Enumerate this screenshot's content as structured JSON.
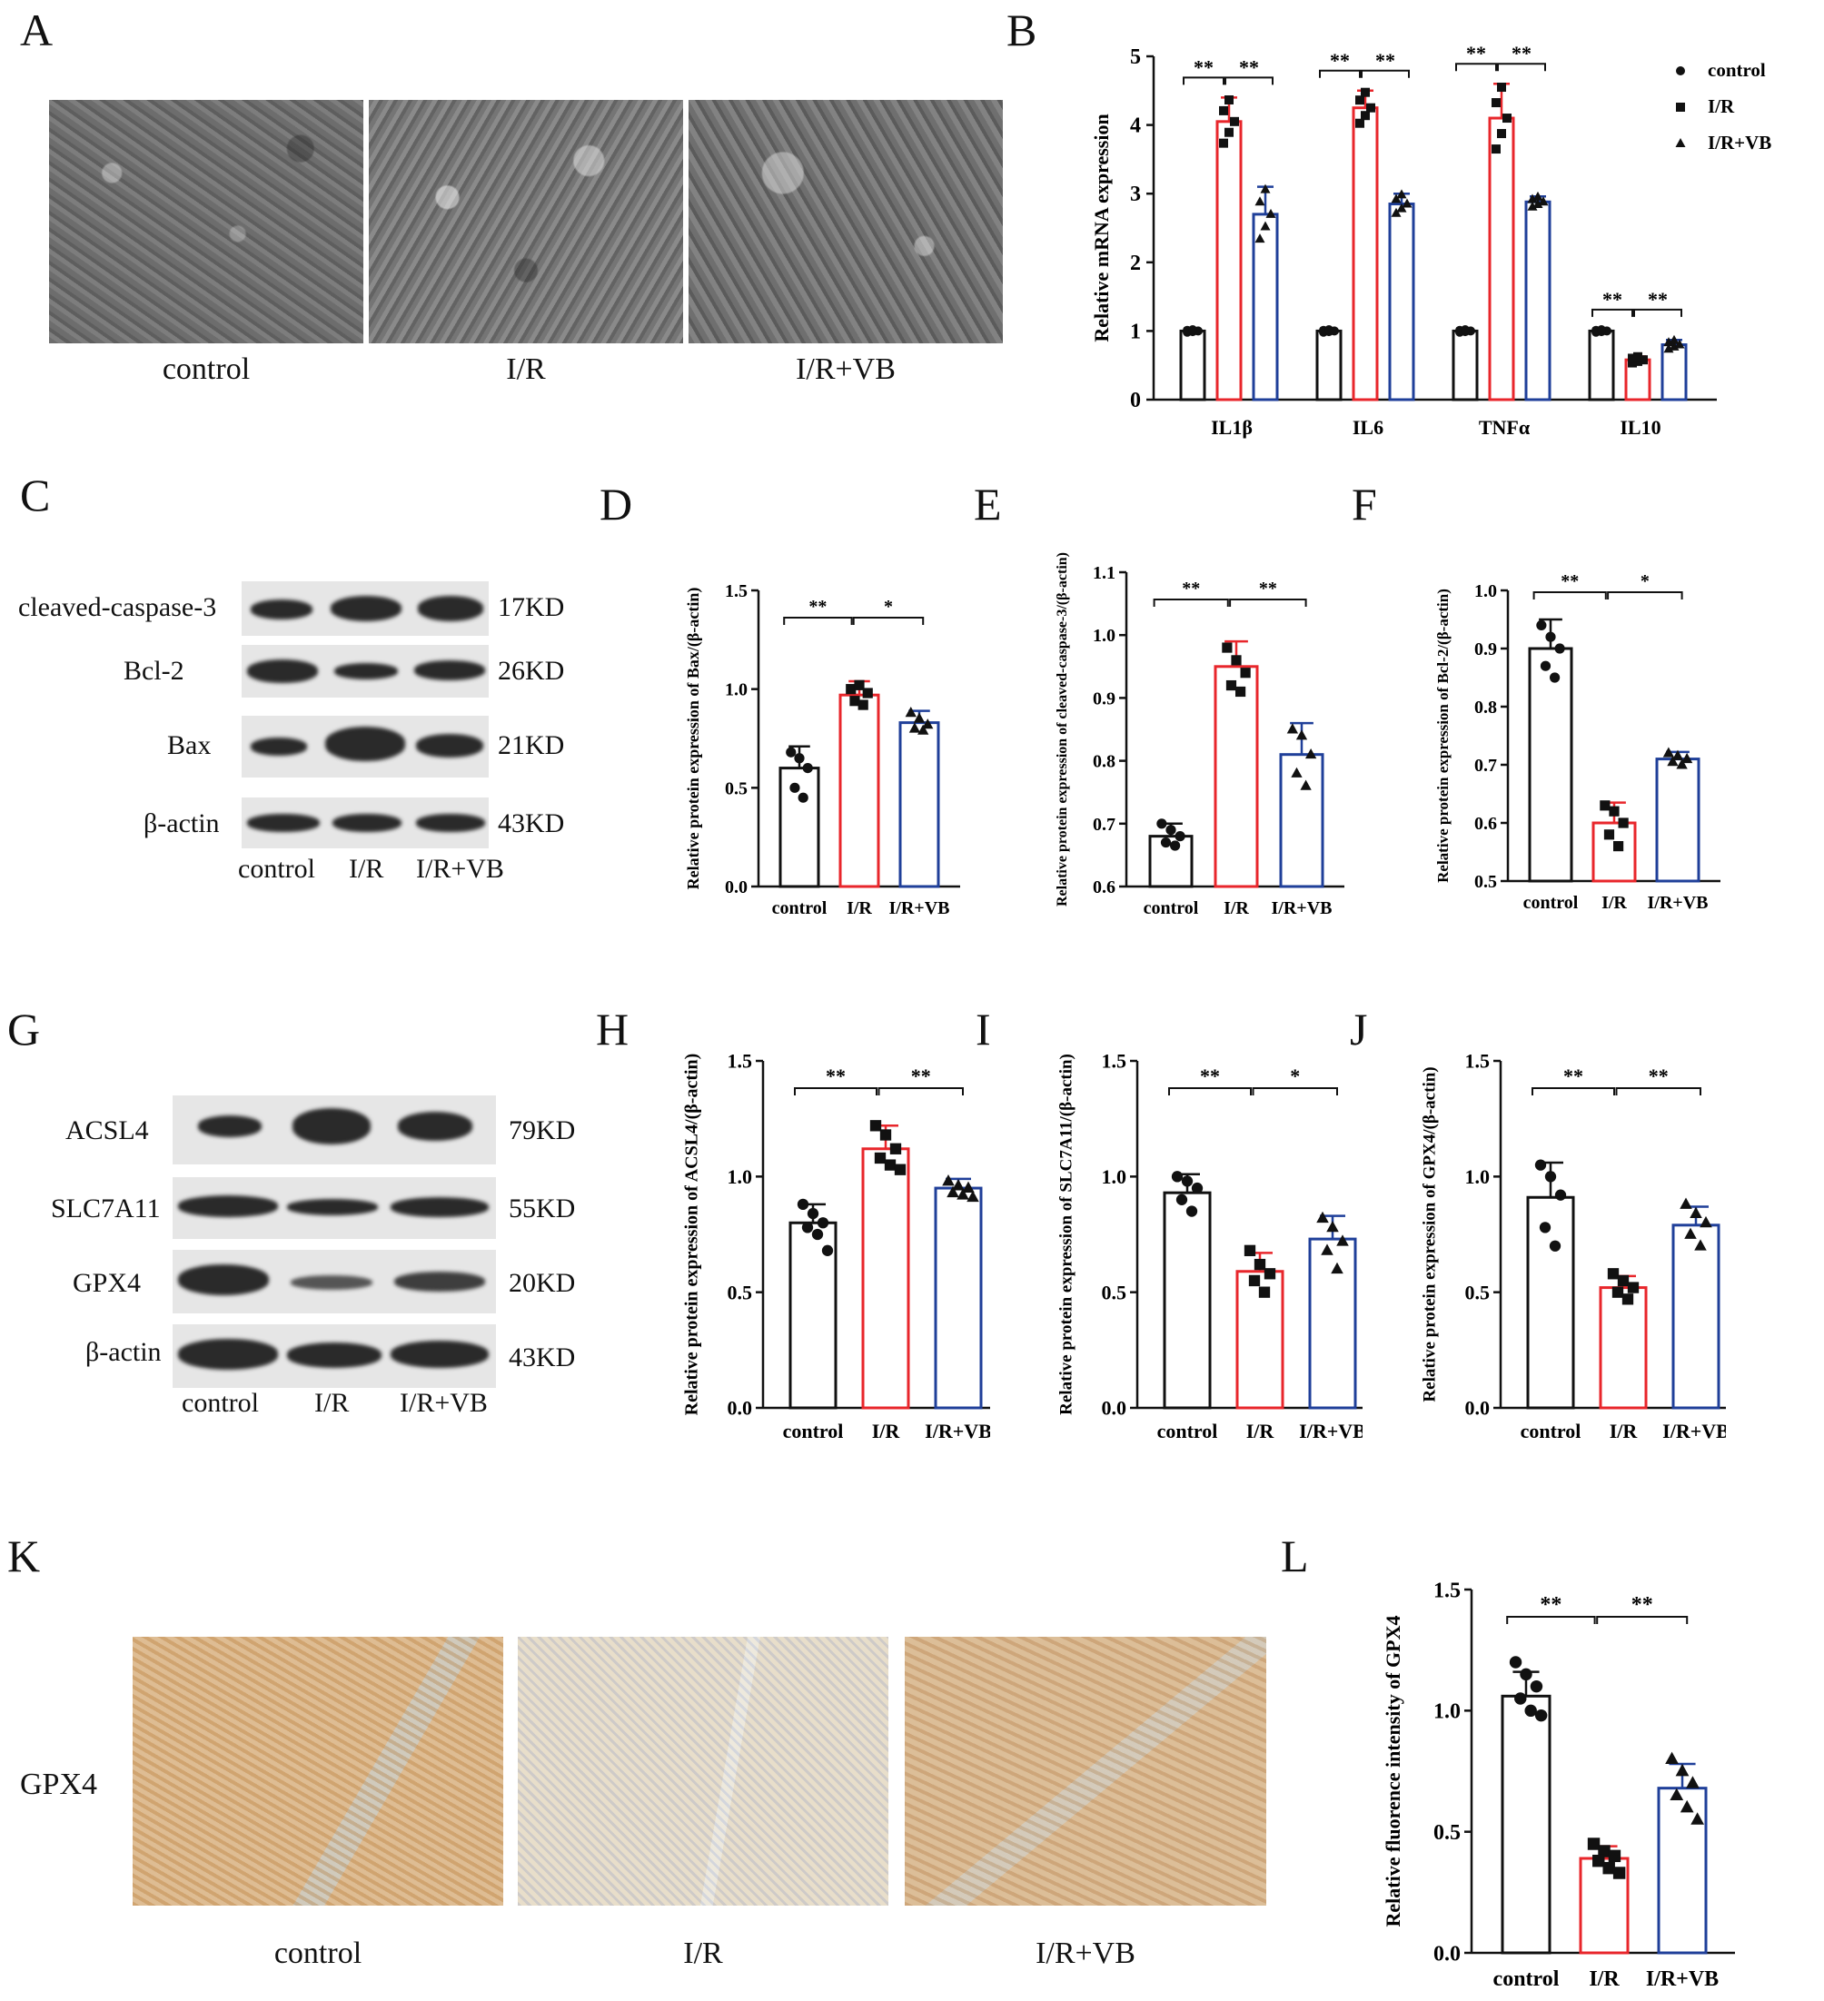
{
  "panel_letters": [
    "A",
    "B",
    "C",
    "D",
    "E",
    "F",
    "G",
    "H",
    "I",
    "J",
    "K",
    "L"
  ],
  "panel_A": {
    "captions": [
      "control",
      "I/R",
      "I/R+VB"
    ]
  },
  "panel_C": {
    "rows": [
      {
        "protein": "cleaved-caspase-3",
        "size": "17KD"
      },
      {
        "protein": "Bcl-2",
        "size": "26KD"
      },
      {
        "protein": "Bax",
        "size": "21KD"
      },
      {
        "protein": "β-actin",
        "size": "43KD"
      }
    ],
    "lanes": [
      "control",
      "I/R",
      "I/R+VB"
    ]
  },
  "panel_G": {
    "rows": [
      {
        "protein": "ACSL4",
        "size": "79KD"
      },
      {
        "protein": "SLC7A11",
        "size": "55KD"
      },
      {
        "protein": "GPX4",
        "size": "20KD"
      },
      {
        "protein": "β-actin",
        "size": "43KD"
      }
    ],
    "lanes": [
      "control",
      "I/R",
      "I/R+VB"
    ]
  },
  "panel_K": {
    "row_label": "GPX4",
    "captions": [
      "control",
      "I/R",
      "I/R+VB"
    ]
  },
  "colors": {
    "control": "#111111",
    "ir": "#e8262b",
    "irvb": "#1f3f99"
  },
  "chart_data": [
    {
      "panel": "B",
      "type": "bar",
      "categories": [
        "IL1β",
        "IL6",
        "TNFα",
        "IL10"
      ],
      "ylabel": "Relative mRNA expression",
      "ylim": [
        0,
        5
      ],
      "yticks": [
        "0",
        "1",
        "2",
        "3",
        "4",
        "5"
      ],
      "legend": [
        "control",
        "I/R",
        "I/R+VB"
      ],
      "legend_position": "top-right",
      "series": [
        {
          "name": "control",
          "values": [
            1.0,
            1.0,
            1.0,
            1.0
          ],
          "err": [
            0.02,
            0.02,
            0.02,
            0.02
          ]
        },
        {
          "name": "I/R",
          "values": [
            4.05,
            4.25,
            4.1,
            0.58
          ],
          "err": [
            0.35,
            0.25,
            0.5,
            0.05
          ]
        },
        {
          "name": "I/R+VB",
          "values": [
            2.7,
            2.85,
            2.88,
            0.8
          ],
          "err": [
            0.4,
            0.15,
            0.08,
            0.07
          ]
        }
      ],
      "significance": [
        "**",
        "**",
        "**",
        "**",
        "**",
        "**",
        "**",
        "**"
      ]
    },
    {
      "panel": "D",
      "type": "bar",
      "categories": [
        "control",
        "I/R",
        "I/R+VB"
      ],
      "ylabel": "Relative protein expression of Bax/(β-actin)",
      "ylim": [
        0,
        1.5
      ],
      "yticks": [
        "0.0",
        "0.5",
        "1.0",
        "1.5"
      ],
      "values": [
        0.6,
        0.97,
        0.83
      ],
      "err": [
        0.11,
        0.07,
        0.06
      ],
      "points": [
        [
          0.68,
          0.65,
          0.6,
          0.5,
          0.45
        ],
        [
          1.0,
          1.02,
          0.98,
          0.94,
          0.92
        ],
        [
          0.88,
          0.85,
          0.82,
          0.8,
          0.79
        ]
      ],
      "significance": [
        "**",
        "*"
      ]
    },
    {
      "panel": "E",
      "type": "bar",
      "categories": [
        "control",
        "I/R",
        "I/R+VB"
      ],
      "ylabel": "Relative protein expression of cleaved-caspase-3/(β-actin)",
      "ylim": [
        0.6,
        1.1
      ],
      "yticks": [
        "0.6",
        "0.7",
        "0.8",
        "0.9",
        "1.0",
        "1.1"
      ],
      "values": [
        0.68,
        0.95,
        0.81
      ],
      "err": [
        0.02,
        0.04,
        0.05
      ],
      "points": [
        [
          0.7,
          0.69,
          0.68,
          0.67,
          0.665
        ],
        [
          0.98,
          0.96,
          0.94,
          0.92,
          0.91
        ],
        [
          0.85,
          0.84,
          0.81,
          0.78,
          0.76
        ]
      ],
      "significance": [
        "**",
        "**"
      ]
    },
    {
      "panel": "F",
      "type": "bar",
      "categories": [
        "control",
        "I/R",
        "I/R+VB"
      ],
      "ylabel": "Relative protein expression of Bcl-2/(β-actin)",
      "ylim": [
        0.5,
        1.0
      ],
      "yticks": [
        "0.5",
        "0.6",
        "0.7",
        "0.8",
        "0.9",
        "1.0"
      ],
      "values": [
        0.9,
        0.6,
        0.71
      ],
      "err": [
        0.05,
        0.035,
        0.012
      ],
      "points": [
        [
          0.94,
          0.92,
          0.9,
          0.87,
          0.85
        ],
        [
          0.63,
          0.62,
          0.6,
          0.58,
          0.56
        ],
        [
          0.72,
          0.715,
          0.71,
          0.705,
          0.7
        ]
      ],
      "significance": [
        "**",
        "*"
      ]
    },
    {
      "panel": "H",
      "type": "bar",
      "categories": [
        "control",
        "I/R",
        "I/R+VB"
      ],
      "ylabel": "Relative protein expression of ACSL4/(β-actin)",
      "ylim": [
        0,
        1.5
      ],
      "yticks": [
        "0.0",
        "0.5",
        "1.0",
        "1.5"
      ],
      "values": [
        0.8,
        1.12,
        0.95
      ],
      "err": [
        0.08,
        0.1,
        0.04
      ],
      "points": [
        [
          0.88,
          0.84,
          0.8,
          0.78,
          0.75,
          0.68
        ],
        [
          1.22,
          1.18,
          1.12,
          1.08,
          1.05,
          1.03
        ],
        [
          0.98,
          0.96,
          0.95,
          0.93,
          0.92,
          0.91
        ]
      ],
      "significance": [
        "**",
        "**"
      ]
    },
    {
      "panel": "I",
      "type": "bar",
      "categories": [
        "control",
        "I/R",
        "I/R+VB"
      ],
      "ylabel": "Relative protein expression of SLC7A11/(β-actin)",
      "ylim": [
        0,
        1.5
      ],
      "yticks": [
        "0.0",
        "0.5",
        "1.0",
        "1.5"
      ],
      "values": [
        0.93,
        0.59,
        0.73
      ],
      "err": [
        0.08,
        0.08,
        0.1
      ],
      "points": [
        [
          1.0,
          0.98,
          0.95,
          0.9,
          0.85
        ],
        [
          0.68,
          0.62,
          0.58,
          0.55,
          0.5
        ],
        [
          0.82,
          0.78,
          0.72,
          0.68,
          0.6
        ]
      ],
      "significance": [
        "**",
        "*"
      ]
    },
    {
      "panel": "J",
      "type": "bar",
      "categories": [
        "control",
        "I/R",
        "I/R+VB"
      ],
      "ylabel": "Relative protein expression of GPX4/(β-actin)",
      "ylim": [
        0,
        1.5
      ],
      "yticks": [
        "0.0",
        "0.5",
        "1.0",
        "1.5"
      ],
      "values": [
        0.91,
        0.52,
        0.79
      ],
      "err": [
        0.15,
        0.05,
        0.08
      ],
      "points": [
        [
          1.05,
          1.0,
          0.92,
          0.78,
          0.7
        ],
        [
          0.58,
          0.55,
          0.52,
          0.5,
          0.47
        ],
        [
          0.88,
          0.84,
          0.8,
          0.75,
          0.7
        ]
      ],
      "significance": [
        "**",
        "**"
      ]
    },
    {
      "panel": "L",
      "type": "bar",
      "categories": [
        "control",
        "I/R",
        "I/R+VB"
      ],
      "ylabel": "Relative fluorence intensity of GPX4",
      "ylim": [
        0,
        1.5
      ],
      "yticks": [
        "0.0",
        "0.5",
        "1.0",
        "1.5"
      ],
      "values": [
        1.06,
        0.39,
        0.68
      ],
      "err": [
        0.1,
        0.05,
        0.1
      ],
      "points": [
        [
          1.2,
          1.15,
          1.1,
          1.05,
          1.0,
          0.98
        ],
        [
          0.45,
          0.42,
          0.4,
          0.38,
          0.35,
          0.33
        ],
        [
          0.8,
          0.75,
          0.7,
          0.65,
          0.6,
          0.55
        ]
      ],
      "significance": [
        "**",
        "**"
      ]
    }
  ]
}
